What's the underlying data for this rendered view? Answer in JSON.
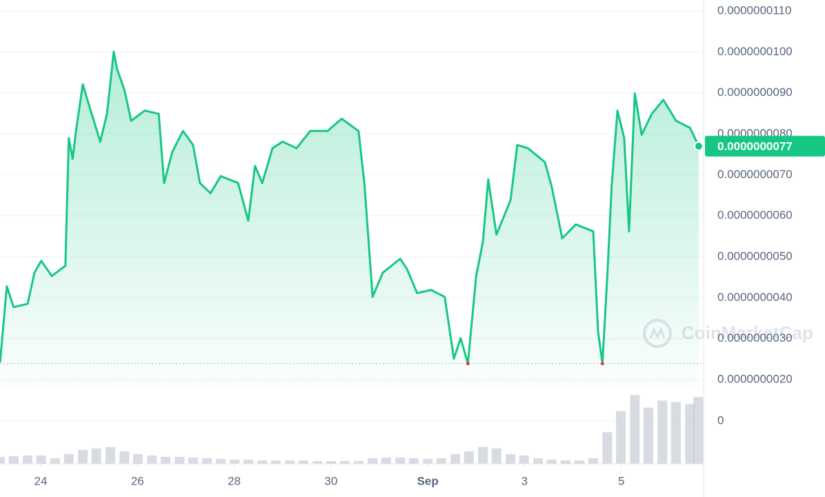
{
  "chart_data": {
    "type": "line",
    "color": "#16c784",
    "low_color": "#ea3943",
    "grid": true,
    "watermark": "CoinMarketCap",
    "x": [
      -0.84,
      -0.7,
      -0.56,
      -0.27,
      -0.13,
      0.01,
      0.23,
      0.51,
      0.58,
      0.66,
      0.73,
      0.87,
      1.01,
      1.23,
      1.37,
      1.51,
      1.58,
      1.73,
      1.87,
      2.15,
      2.44,
      2.55,
      2.72,
      2.94,
      3.15,
      3.29,
      3.51,
      3.72,
      4.08,
      4.29,
      4.43,
      4.58,
      4.79,
      5.0,
      5.29,
      5.57,
      5.93,
      6.22,
      6.57,
      6.69,
      6.86,
      7.07,
      7.43,
      7.57,
      7.78,
      8.07,
      8.35,
      8.54,
      8.68,
      8.83,
      9.0,
      9.14,
      9.25,
      9.42,
      9.71,
      9.85,
      10.07,
      10.42,
      10.56,
      10.78,
      11.06,
      11.42,
      11.52,
      11.61,
      11.71,
      11.8,
      11.92,
      12.06,
      12.16,
      12.28,
      12.42,
      12.63,
      12.87,
      13.13,
      13.42,
      13.6
    ],
    "series": [
      {
        "values": [
          2.42e-09,
          4.28e-09,
          3.77e-09,
          3.85e-09,
          4.61e-09,
          4.9e-09,
          4.53e-09,
          4.78e-09,
          7.9e-09,
          7.39e-09,
          8.07e-09,
          9.21e-09,
          8.66e-09,
          7.81e-09,
          8.49e-09,
          1.001e-08,
          9.58e-09,
          9.08e-09,
          8.32e-09,
          8.57e-09,
          8.49e-09,
          6.8e-09,
          7.56e-09,
          8.07e-09,
          7.73e-09,
          6.8e-09,
          6.55e-09,
          6.97e-09,
          6.8e-09,
          5.88e-09,
          7.22e-09,
          6.8e-09,
          7.65e-09,
          7.81e-09,
          7.65e-09,
          8.07e-09,
          8.07e-09,
          8.37e-09,
          8.07e-09,
          6.8e-09,
          4.02e-09,
          4.61e-09,
          4.95e-09,
          4.7e-09,
          4.11e-09,
          4.19e-09,
          4.02e-09,
          2.51e-09,
          3.01e-09,
          2.39e-09,
          4.53e-09,
          5.37e-09,
          6.89e-09,
          5.54e-09,
          6.38e-09,
          7.73e-09,
          7.65e-09,
          7.31e-09,
          6.72e-09,
          5.45e-09,
          5.79e-09,
          5.62e-09,
          3.18e-09,
          2.39e-09,
          4.53e-09,
          6.72e-09,
          8.57e-09,
          7.9e-09,
          5.62e-09,
          8.99e-09,
          7.98e-09,
          8.49e-09,
          8.83e-09,
          8.32e-09,
          8.15e-09,
          7.7e-09
        ]
      }
    ],
    "current_price": {
      "value": 7.7e-09,
      "label": "0.0000000077"
    },
    "volume": {
      "color": "#c8ccd6",
      "x": [
        -0.84,
        -0.56,
        -0.27,
        0.01,
        0.3,
        0.58,
        0.87,
        1.15,
        1.44,
        1.73,
        2.01,
        2.3,
        2.58,
        2.87,
        3.15,
        3.44,
        3.72,
        4.01,
        4.29,
        4.58,
        4.86,
        5.15,
        5.43,
        5.72,
        6.0,
        6.29,
        6.57,
        6.86,
        7.14,
        7.43,
        7.71,
        8.0,
        8.28,
        8.57,
        8.85,
        9.14,
        9.42,
        9.71,
        9.99,
        10.28,
        10.56,
        10.85,
        11.13,
        11.42,
        11.71,
        11.99,
        12.28,
        12.56,
        12.85,
        13.13,
        13.42,
        13.59
      ],
      "values": [
        10,
        11,
        12,
        12,
        8,
        14,
        20,
        22,
        24,
        18,
        14,
        12,
        10,
        10,
        9,
        8,
        7,
        6,
        6,
        5,
        5,
        5,
        5,
        4,
        4,
        4,
        4,
        8,
        9,
        9,
        8,
        7,
        8,
        14,
        18,
        24,
        22,
        14,
        12,
        8,
        6,
        5,
        5,
        8,
        45,
        75,
        98,
        80,
        90,
        88,
        85,
        95
      ],
      "ylim": [
        0,
        110
      ],
      "yticks": [
        0
      ]
    },
    "xlim": [
      -0.841,
      13.601
    ],
    "xticks": [
      {
        "value": 0,
        "label": "24"
      },
      {
        "value": 2,
        "label": "26"
      },
      {
        "value": 4,
        "label": "28"
      },
      {
        "value": 6,
        "label": "30"
      },
      {
        "value": 8,
        "label": "Sep"
      },
      {
        "value": 10,
        "label": "3"
      },
      {
        "value": 12,
        "label": "5"
      }
    ],
    "ylim": [
      1.83e-09,
      1.127e-08
    ],
    "yticks": [
      {
        "value": 2e-09,
        "label": "0.0000000020"
      },
      {
        "value": 3e-09,
        "label": "0.0000000030"
      },
      {
        "value": 4e-09,
        "label": "0.0000000040"
      },
      {
        "value": 5e-09,
        "label": "0.0000000050"
      },
      {
        "value": 6e-09,
        "label": "0.0000000060"
      },
      {
        "value": 7e-09,
        "label": "0.0000000070"
      },
      {
        "value": 8e-09,
        "label": "0.0000000080"
      },
      {
        "value": 9e-09,
        "label": "0.0000000090"
      },
      {
        "value": 1e-08,
        "label": "0.0000000100"
      },
      {
        "value": 1.1e-08,
        "label": "0.0000000110"
      }
    ]
  }
}
